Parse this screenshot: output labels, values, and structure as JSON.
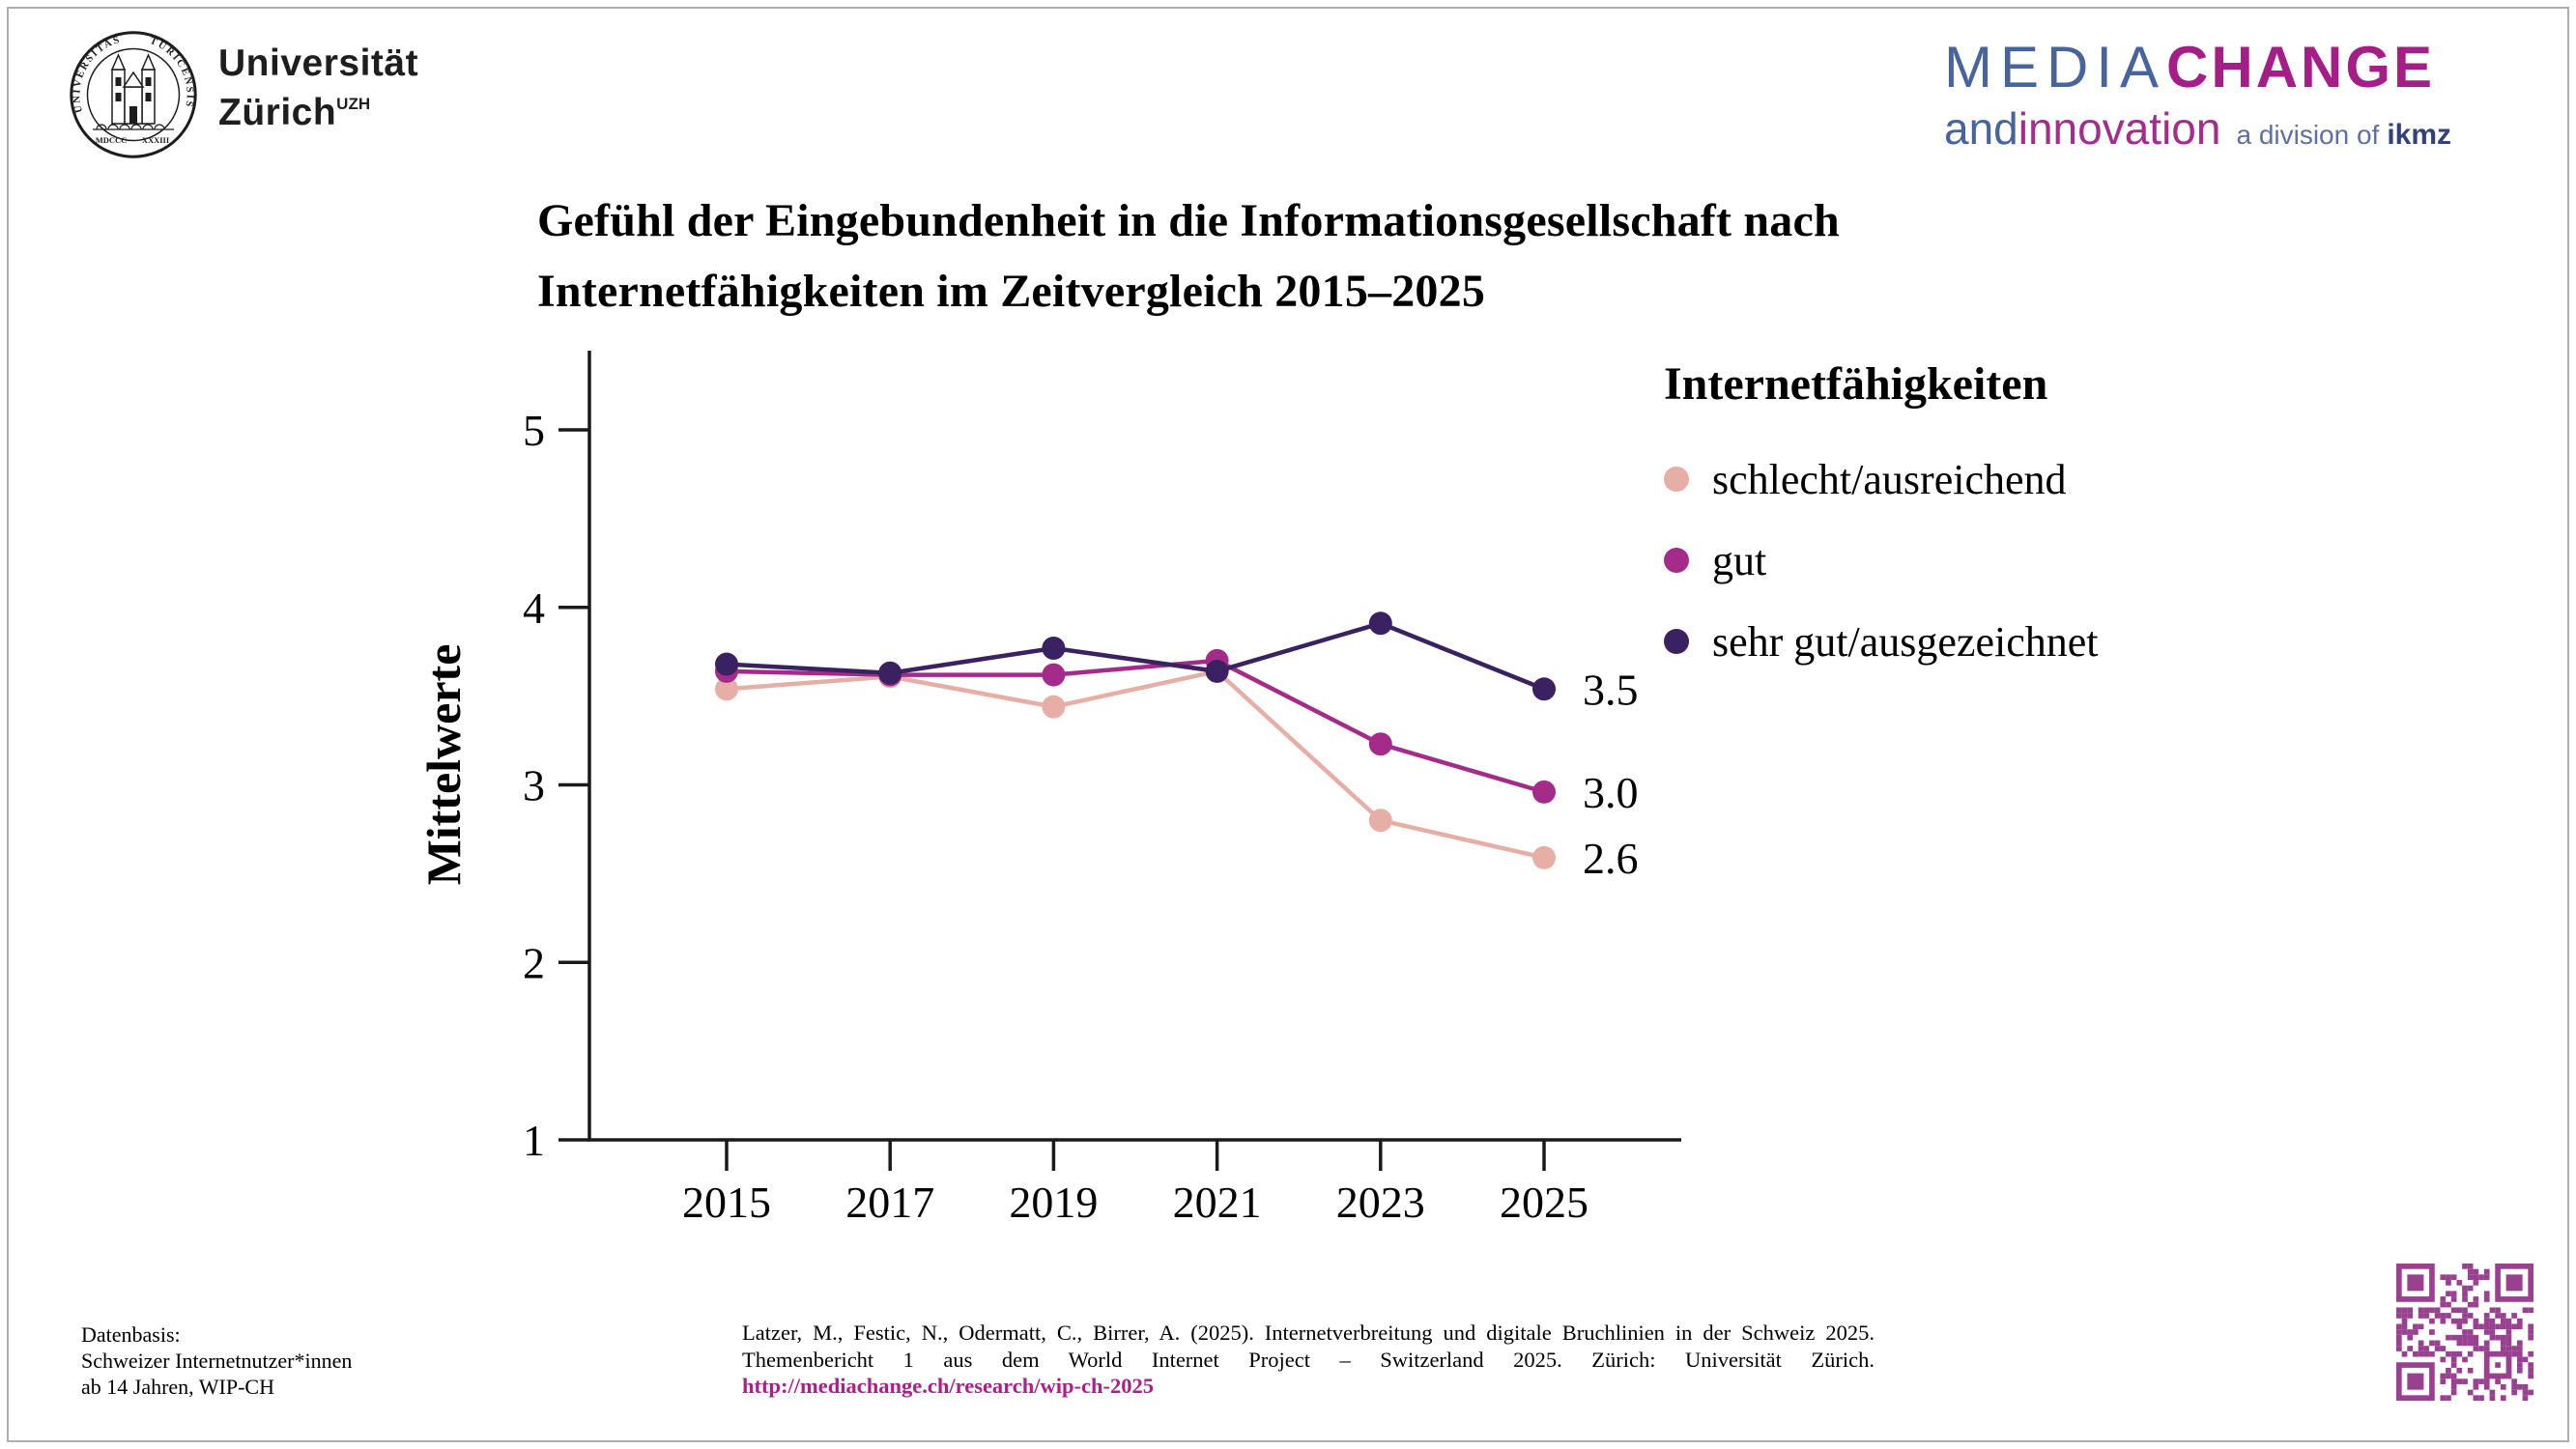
{
  "colors": {
    "axis": "#1a1a1a",
    "url": "#ac1f8a",
    "qr": "#9a4090",
    "uzh_text": "#1e1e1e",
    "mc_media": "#47649f",
    "mc_change": "#a51e87",
    "mc_and": "#47649f",
    "mc_innovation": "#a32c8c",
    "mc_division": "#5e6fa8",
    "mc_ikmz": "#32407e"
  },
  "header": {
    "uzh_logo": {
      "line1": "Universität",
      "line2": "Zürich",
      "sup": "UZH",
      "seal_left": "UNIVERSITAS",
      "seal_right": "TURICENSIS",
      "seal_year_left": "MDCCC",
      "seal_year_right": "XXXIII"
    },
    "mediachange_logo": {
      "media": "MEDIA",
      "change": "CHANGE",
      "and": "and ",
      "innovation": "innovation",
      "division": "a division of",
      "ikmz": "ikmz"
    }
  },
  "title": {
    "text": "Gefühl der Eingebundenheit in die Informationsgesellschaft nach\nInternetfähigkeiten im Zeitvergleich 2015–2025"
  },
  "chart_data": {
    "type": "line",
    "title": "Gefühl der Eingebundenheit in die Informationsgesellschaft nach Internetfähigkeiten im Zeitvergleich 2015–2025",
    "x": [
      2015,
      2017,
      2019,
      2021,
      2023,
      2025
    ],
    "xticklabels": [
      "2015",
      "2017",
      "2019",
      "2021",
      "2023",
      "2025"
    ],
    "series": [
      {
        "name": "schlecht/ausreichend",
        "color": "#e6aea5",
        "values": [
          3.54,
          3.61,
          3.44,
          3.64,
          2.8,
          2.59
        ],
        "end_label": "2.6"
      },
      {
        "name": "gut",
        "color": "#a52b8a",
        "values": [
          3.64,
          3.62,
          3.62,
          3.7,
          3.23,
          2.96
        ],
        "end_label": "3.0"
      },
      {
        "name": "sehr gut/ausgezeichnet",
        "color": "#3a2161",
        "values": [
          3.68,
          3.63,
          3.77,
          3.64,
          3.91,
          3.54
        ],
        "end_label": "3.5"
      }
    ],
    "ylabel": "Mittelwerte",
    "ylim": [
      1,
      5
    ],
    "yticks": [
      1,
      2,
      3,
      4,
      5
    ],
    "legend_title": "Internetfähigkeiten",
    "legend_position": "right",
    "grid": false
  },
  "footer": {
    "datenbasis": "Datenbasis:\nSchweizer Internetnutzer*innen\nab 14 Jahren, WIP-CH",
    "citation_line1": "Latzer, M., Festic, N., Odermatt, C., Birrer, A. (2025). Internetverbreitung und digitale Bruchlinien in der Schweiz 2025.",
    "citation_line2": "Themenbericht 1 aus dem World Internet Project – Switzerland 2025. Zürich: Universität Zürich.",
    "citation_url": "http://mediachange.ch/research/wip-ch-2025"
  }
}
